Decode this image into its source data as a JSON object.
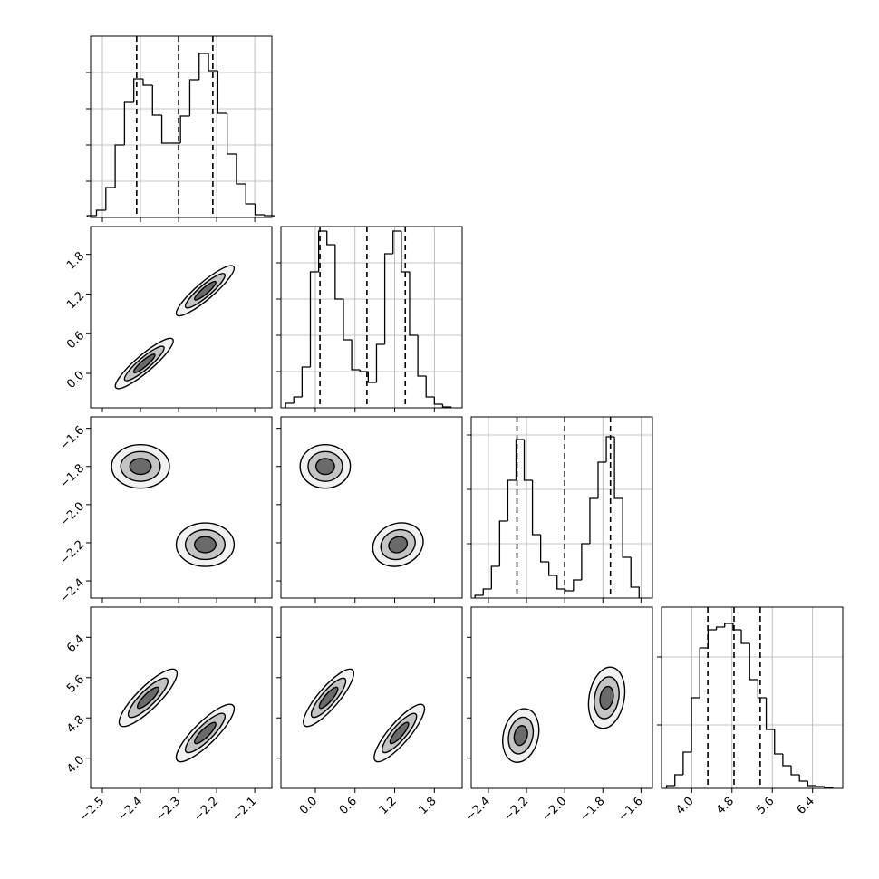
{
  "chart_data": {
    "type": "corner",
    "params": [
      {
        "lim": [
          -2.531,
          -2.055
        ],
        "ticks": [
          {
            "value": -2.5,
            "label": "−2.5"
          },
          {
            "value": -2.4,
            "label": "−2.4"
          },
          {
            "value": -2.3,
            "label": "−2.3"
          },
          {
            "value": -2.2,
            "label": "−2.2"
          },
          {
            "value": -2.1,
            "label": "−2.1"
          }
        ]
      },
      {
        "lim": [
          -0.52,
          2.22
        ],
        "ticks": [
          {
            "value": 0,
            "label": "0.0"
          },
          0.6,
          1.2,
          1.8
        ]
      },
      {
        "lim": [
          -2.49,
          -1.54
        ],
        "ticks": [
          {
            "value": -2.4,
            "label": "−2.4"
          },
          {
            "value": -2.2,
            "label": "−2.2"
          },
          {
            "value": -2.0,
            "label": "−2.0"
          },
          {
            "value": -1.8,
            "label": "−1.8"
          },
          {
            "value": -1.6,
            "label": "−1.6"
          }
        ]
      },
      {
        "lim": [
          3.4,
          7.0
        ],
        "ticks": [
          {
            "value": 4.0,
            "label": "4.0"
          },
          4.8,
          5.6,
          6.4
        ]
      }
    ],
    "histograms": [
      {
        "bins": [
          -2.54,
          -2.5155,
          -2.491,
          -2.4665,
          -2.442,
          -2.4175,
          -2.393,
          -2.3685,
          -2.344,
          -2.3195,
          -2.295,
          -2.2705,
          -2.246,
          -2.2215,
          -2.197,
          -2.1725,
          -2.148,
          -2.1235,
          -2.099,
          -2.0745,
          -2.05
        ],
        "counts": [
          2,
          8,
          33,
          80,
          127,
          153,
          146,
          113,
          82,
          82,
          112,
          152,
          181,
          162,
          115,
          70,
          37,
          15,
          3,
          2
        ],
        "quantiles": [
          -2.41,
          -2.3,
          -2.21
        ],
        "ylim": [
          0,
          200
        ],
        "yticks": [
          40,
          80,
          120,
          160
        ]
      },
      {
        "bins": [
          -0.45,
          -0.325,
          -0.2,
          -0.075,
          0.05,
          0.175,
          0.3,
          0.425,
          0.55,
          0.675,
          0.8,
          0.925,
          1.05,
          1.175,
          1.3,
          1.425,
          1.55,
          1.675,
          1.8,
          1.925,
          2.05
        ],
        "counts": [
          5,
          12,
          45,
          150,
          195,
          180,
          120,
          75,
          42,
          40,
          28,
          70,
          170,
          195,
          150,
          80,
          35,
          12,
          4,
          1
        ],
        "quantiles": [
          0.07,
          0.78,
          1.36
        ],
        "ylim": [
          0,
          200
        ],
        "yticks": [
          40,
          80,
          120,
          160
        ]
      },
      {
        "bins": [
          -2.47,
          -2.427,
          -2.384,
          -2.341,
          -2.298,
          -2.255,
          -2.212,
          -2.169,
          -2.126,
          -2.083,
          -2.04,
          -1.997,
          -1.954,
          -1.911,
          -1.868,
          -1.825,
          -1.782,
          -1.739,
          -1.696,
          -1.653,
          -1.61
        ],
        "counts": [
          3,
          10,
          35,
          85,
          130,
          175,
          130,
          70,
          40,
          25,
          10,
          8,
          20,
          60,
          110,
          150,
          178,
          110,
          45,
          12
        ],
        "quantiles": [
          -2.25,
          -2.0,
          -1.76
        ],
        "ylim": [
          0,
          200
        ],
        "yticks": [
          60,
          120,
          180
        ]
      },
      {
        "bins": [
          3.5,
          3.665,
          3.83,
          3.995,
          4.16,
          4.325,
          4.49,
          4.655,
          4.82,
          4.985,
          5.15,
          5.315,
          5.48,
          5.645,
          5.81,
          5.975,
          6.14,
          6.305,
          6.47,
          6.635,
          6.8
        ],
        "counts": [
          3,
          15,
          40,
          100,
          155,
          175,
          178,
          182,
          175,
          160,
          120,
          100,
          65,
          38,
          25,
          15,
          8,
          3,
          2,
          1
        ],
        "quantiles": [
          4.32,
          4.84,
          5.36
        ],
        "ylim": [
          0,
          200
        ],
        "yticks": [
          70,
          145
        ]
      }
    ],
    "contour_levels": [
      1.9,
      1.3,
      0.7
    ],
    "contour_fills": [
      "#f2f2f2",
      "#c4c4c4",
      "#6a6a6a"
    ],
    "pairs": [
      {
        "clusters": [
          {
            "x": -2.39,
            "y": 0.15,
            "sx": 0.04,
            "sy": 0.2,
            "rho": 0.9
          },
          {
            "x": -2.23,
            "y": 1.25,
            "sx": 0.04,
            "sy": 0.2,
            "rho": 0.9
          }
        ]
      },
      {
        "clusters": [
          {
            "x": -2.4,
            "y": -1.8,
            "sx": 0.04,
            "sy": 0.06,
            "rho": 0
          },
          {
            "x": -2.23,
            "y": -2.21,
            "sx": 0.04,
            "sy": 0.06,
            "rho": 0
          }
        ]
      },
      {
        "clusters": [
          {
            "x": 0.15,
            "y": -1.8,
            "sx": 0.2,
            "sy": 0.06,
            "rho": 0
          },
          {
            "x": 1.25,
            "y": -2.21,
            "sx": 0.2,
            "sy": 0.06,
            "rho": 0.15
          }
        ]
      },
      {
        "clusters": [
          {
            "x": -2.38,
            "y": 5.2,
            "sx": 0.04,
            "sy": 0.3,
            "rho": 0.85
          },
          {
            "x": -2.23,
            "y": 4.5,
            "sx": 0.04,
            "sy": 0.3,
            "rho": 0.85
          }
        ]
      },
      {
        "clusters": [
          {
            "x": 0.2,
            "y": 5.2,
            "sx": 0.2,
            "sy": 0.3,
            "rho": 0.85
          },
          {
            "x": 1.27,
            "y": 4.5,
            "sx": 0.2,
            "sy": 0.3,
            "rho": 0.85
          }
        ]
      },
      {
        "clusters": [
          {
            "x": -2.23,
            "y": 4.45,
            "sx": 0.05,
            "sy": 0.28,
            "rho": 0.2
          },
          {
            "x": -1.78,
            "y": 5.2,
            "sx": 0.05,
            "sy": 0.32,
            "rho": 0.2
          }
        ]
      }
    ]
  }
}
